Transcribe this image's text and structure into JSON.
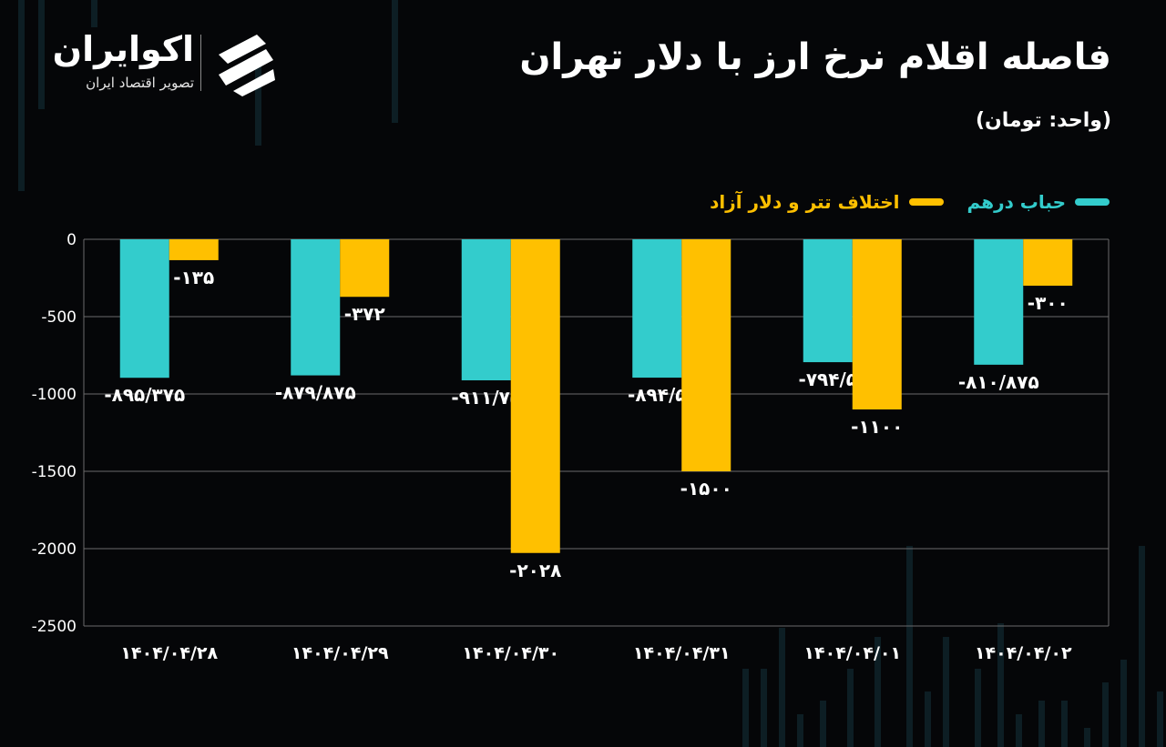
{
  "header": {
    "title": "فاصله اقلام نرخ ارز با دلار تهران",
    "unit": "(واحد: تومان)"
  },
  "logo": {
    "name": "اکوایران",
    "tagline": "تصویر اقتصاد ایران"
  },
  "colors": {
    "background": "#050608",
    "series_1": "#33CCCC",
    "series_2": "#FFC000",
    "grid": "#6b6b6b",
    "text": "#FFFFFF"
  },
  "chart_data": {
    "type": "bar",
    "categories": [
      "1404/04/28",
      "1404/04/29",
      "1404/04/30",
      "1404/04/31",
      "1404/04/01",
      "1404/04/02"
    ],
    "category_labels": [
      "۱۴۰۴/۰۴/۲۸",
      "۱۴۰۴/۰۴/۲۹",
      "۱۴۰۴/۰۴/۳۰",
      "۱۴۰۴/۰۴/۳۱",
      "۱۴۰۴/۰۴/۰۱",
      "۱۴۰۴/۰۴/۰۲"
    ],
    "series": [
      {
        "name": "حباب درهم",
        "color": "#33CCCC",
        "values": [
          -895.375,
          -879.875,
          -911.75,
          -894.5,
          -794.5,
          -810.875
        ],
        "labels": [
          "-۸۹۵/۳۷۵",
          "-۸۷۹/۸۷۵",
          "-۹۱۱/۷۵",
          "-۸۹۴/۵",
          "-۷۹۴/۵",
          "-۸۱۰/۸۷۵"
        ]
      },
      {
        "name": "اختلاف تتر و دلار آزاد",
        "color": "#FFC000",
        "values": [
          -135,
          -372,
          -2028,
          -1500,
          -1100,
          -300
        ],
        "labels": [
          "-۱۳۵",
          "-۳۷۲",
          "-۲۰۲۸",
          "-۱۵۰۰",
          "-۱۱۰۰",
          "-۳۰۰"
        ]
      }
    ],
    "yticks": [
      0,
      -500,
      -1000,
      -1500,
      -2000,
      -2500
    ],
    "ytick_labels": [
      "0",
      "-500",
      "-1000",
      "-1500",
      "-2000",
      "-2500"
    ],
    "ylim": [
      -2500,
      0
    ],
    "grid": true,
    "legend_position": "top-right"
  }
}
